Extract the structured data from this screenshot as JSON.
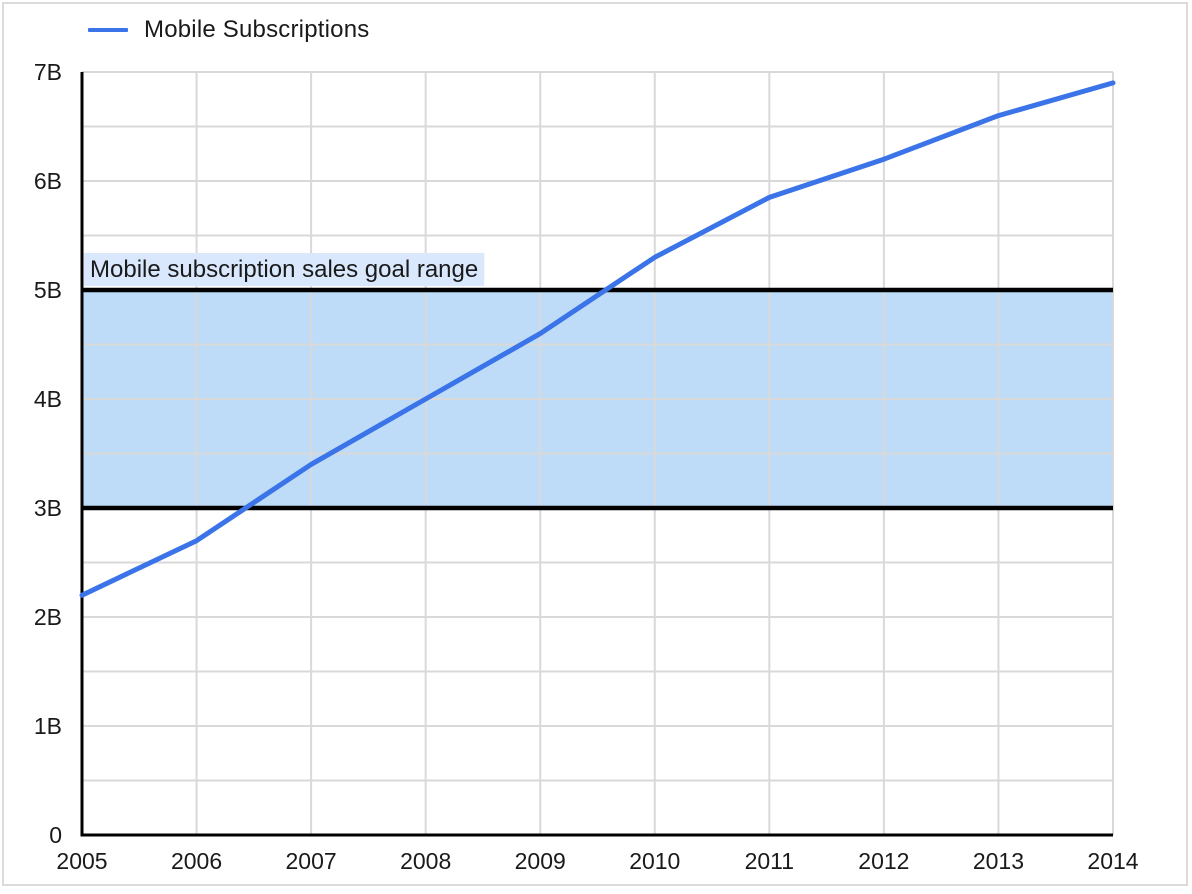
{
  "legend": {
    "position": "top-left",
    "items": [
      {
        "label": "Mobile Subscriptions",
        "color": "#3B74E8"
      }
    ]
  },
  "chart_data": {
    "type": "line",
    "x": [
      2005,
      2006,
      2007,
      2008,
      2009,
      2010,
      2011,
      2012,
      2013,
      2014
    ],
    "x_tick_labels": [
      "2005",
      "2006",
      "2007",
      "2008",
      "2009",
      "2010",
      "2011",
      "2012",
      "2013",
      "2014"
    ],
    "series": [
      {
        "name": "Mobile Subscriptions",
        "color": "#3B74E8",
        "values": [
          2.2,
          2.7,
          3.4,
          4.0,
          4.6,
          5.3,
          5.85,
          6.2,
          6.6,
          6.9
        ]
      }
    ],
    "ylim": [
      0,
      7
    ],
    "y_tick_values": [
      0,
      1,
      2,
      3,
      4,
      5,
      6,
      7
    ],
    "y_tick_labels": [
      "0",
      "1B",
      "2B",
      "3B",
      "4B",
      "5B",
      "6B",
      "7B"
    ],
    "grid": {
      "show": true,
      "horizontal_minor_step": 0.5,
      "vertical_per_x_tick": true,
      "color": "#D9D9D9"
    },
    "annotation_band": {
      "label": "Mobile subscription sales goal range",
      "y_from": 3,
      "y_to": 5,
      "fill_color": "#BEDCF8",
      "border_color": "#000000",
      "label_bg_color": "#D9E8FC"
    },
    "axis_color": "#000000",
    "text_color": "#1A1A1A",
    "legend_position": "top-left"
  }
}
